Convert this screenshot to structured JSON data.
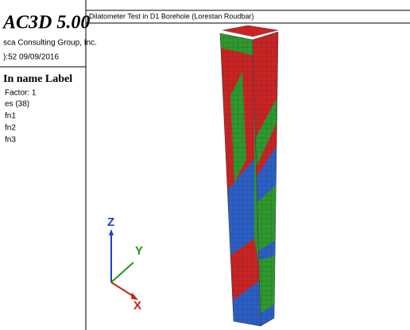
{
  "header": {
    "title": "AC3D 5.00",
    "company": "sca Consulting Group, Inc.",
    "timestamp": "):52 09/09/2016"
  },
  "legend": {
    "heading": "In name Label",
    "factor": "Factor: 1",
    "count": "es (38)",
    "items": [
      "fn1",
      "fn2",
      "fn3"
    ]
  },
  "plot": {
    "title": "Dilatometer Test in D1 Borehole (Lorestan Roudbar)",
    "axes": {
      "z": "Z",
      "y": "Y",
      "x": "X"
    }
  }
}
